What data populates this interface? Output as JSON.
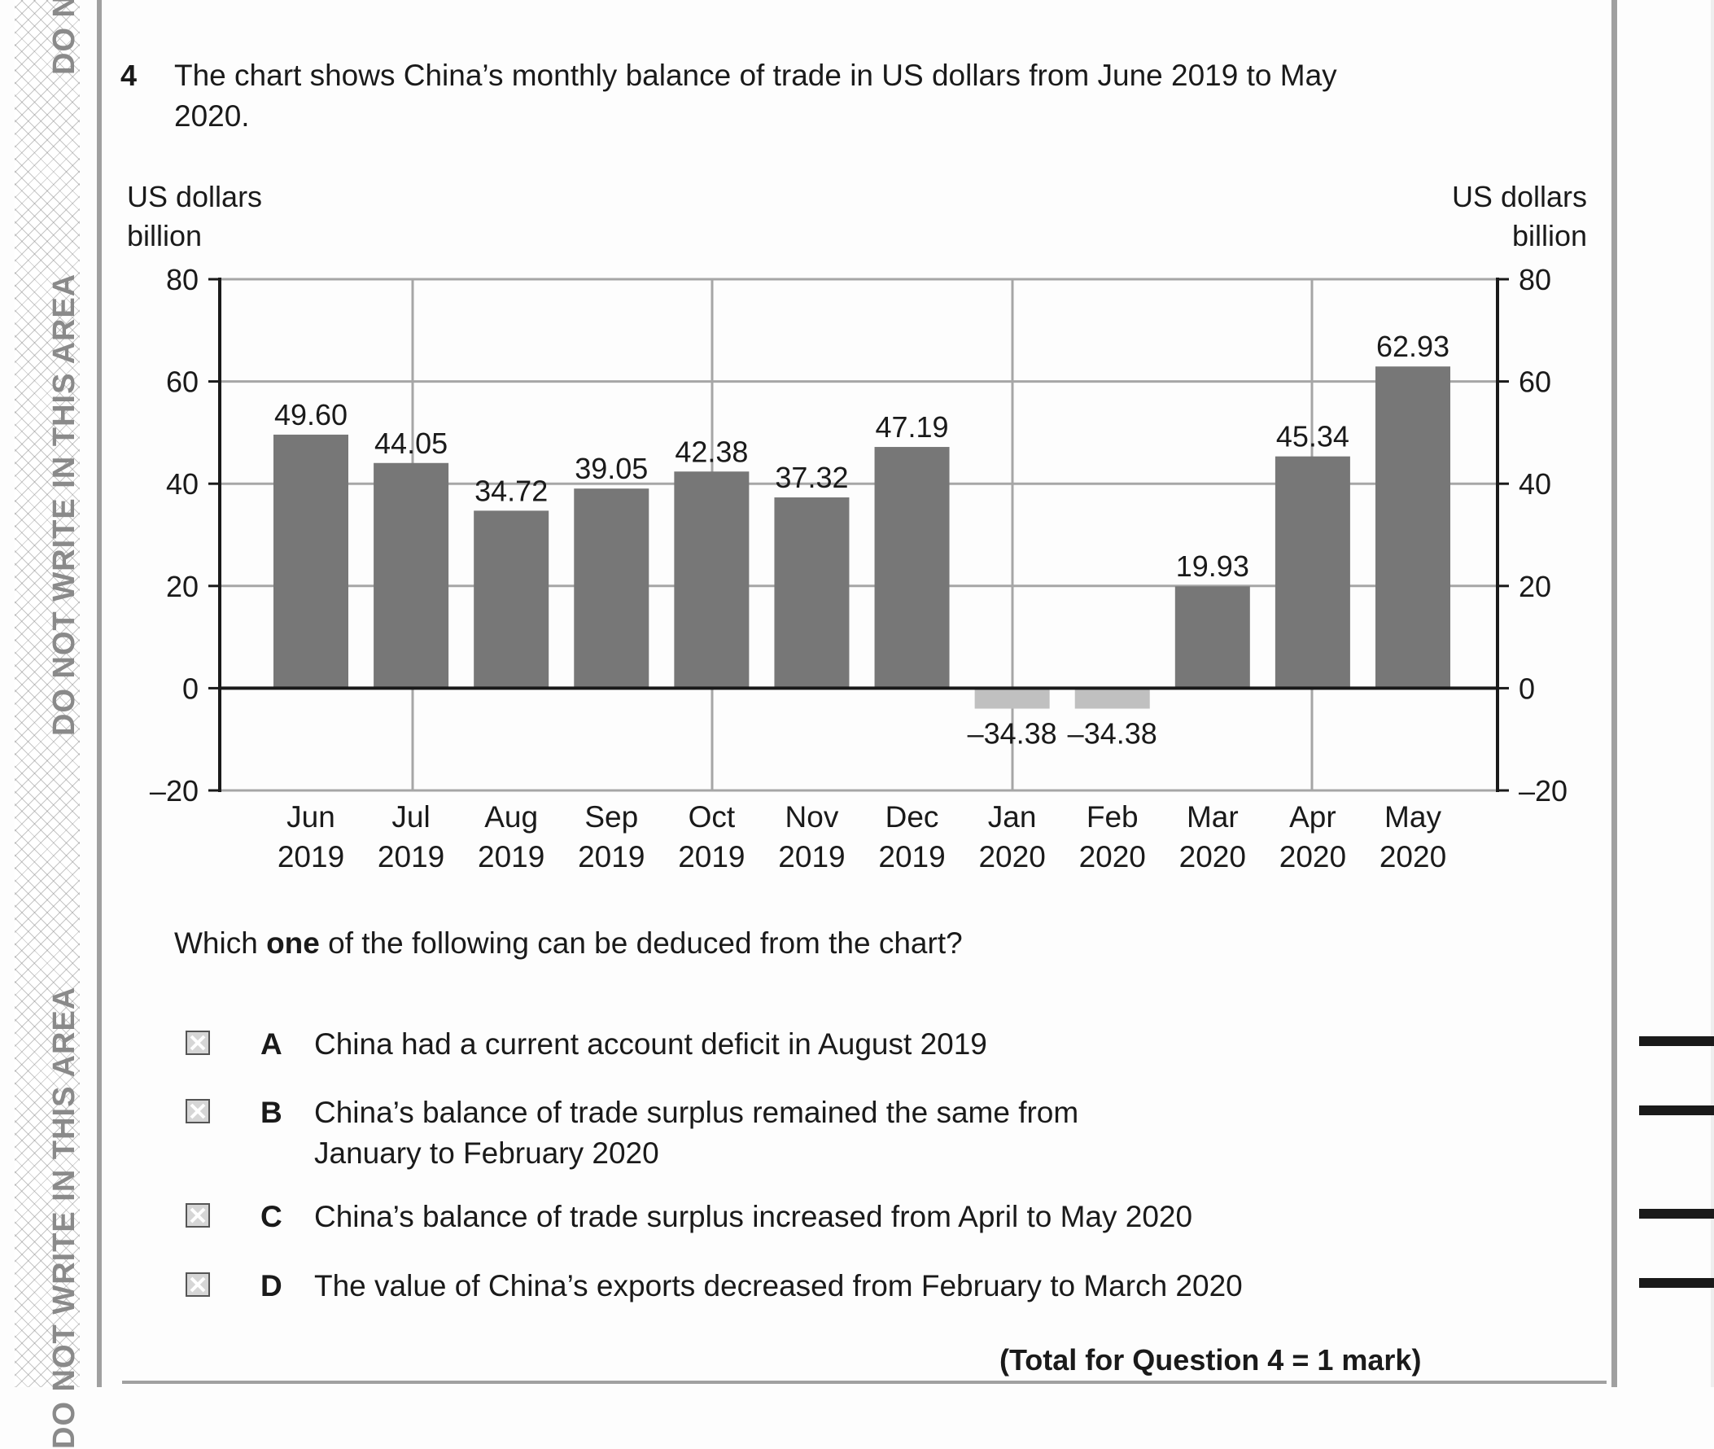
{
  "margin": {
    "text_upper": "DO NOT WRITE IN THIS AREA",
    "text_lower": "DO NOT WRITE IN THIS AREA",
    "text_top": "DO NOT WRITE IN THIS AREA"
  },
  "question": {
    "number": "4",
    "text": "The chart shows China’s monthly balance of trade in US dollars from June 2019 to May 2020.",
    "prompt_pre": "Which ",
    "prompt_bold": "one",
    "prompt_post": " of the following can be deduced from the chart?",
    "options": [
      {
        "letter": "A",
        "text": "China had a current account deficit in August 2019"
      },
      {
        "letter": "B",
        "text": "China’s balance of trade surplus remained the same from January to February 2020"
      },
      {
        "letter": "C",
        "text": "China’s balance of trade surplus increased from April to May 2020"
      },
      {
        "letter": "D",
        "text": "The value of China’s exports decreased from February to March 2020"
      }
    ],
    "total": "(Total for Question 4 = 1 mark)"
  },
  "colors": {
    "positive_bar": "#777777",
    "negative_bar": "#c0c0c0",
    "grid": "#a6a6a6",
    "axis": "#1a1a1a"
  },
  "chart_data": {
    "type": "bar",
    "title": "",
    "ylabel_left": "US dollars billion",
    "ylabel_left_line1": "US dollars",
    "ylabel_left_line2": "billion",
    "ylabel_right_line1": "US dollars",
    "ylabel_right_line2": "billion",
    "xlabel": "",
    "ylim": [
      -20,
      80
    ],
    "yticks": [
      80,
      60,
      40,
      20,
      0,
      -20
    ],
    "ytick_labels": [
      "80",
      "60",
      "40",
      "20",
      "0",
      "–20"
    ],
    "grid": true,
    "categories": [
      {
        "month": "Jun",
        "year": "2019"
      },
      {
        "month": "Jul",
        "year": "2019"
      },
      {
        "month": "Aug",
        "year": "2019"
      },
      {
        "month": "Sep",
        "year": "2019"
      },
      {
        "month": "Oct",
        "year": "2019"
      },
      {
        "month": "Nov",
        "year": "2019"
      },
      {
        "month": "Dec",
        "year": "2019"
      },
      {
        "month": "Jan",
        "year": "2020"
      },
      {
        "month": "Feb",
        "year": "2020"
      },
      {
        "month": "Mar",
        "year": "2020"
      },
      {
        "month": "Apr",
        "year": "2020"
      },
      {
        "month": "May",
        "year": "2020"
      }
    ],
    "values": [
      49.6,
      44.05,
      34.72,
      39.05,
      42.38,
      37.32,
      47.19,
      -34.38,
      -34.38,
      19.93,
      45.34,
      62.93
    ],
    "value_labels": [
      "49.60",
      "44.05",
      "34.72",
      "39.05",
      "42.38",
      "37.32",
      "47.19",
      "–34.38",
      "–34.38",
      "19.93",
      "45.34",
      "62.93"
    ],
    "drawn_negative_bar_depth": -4
  }
}
